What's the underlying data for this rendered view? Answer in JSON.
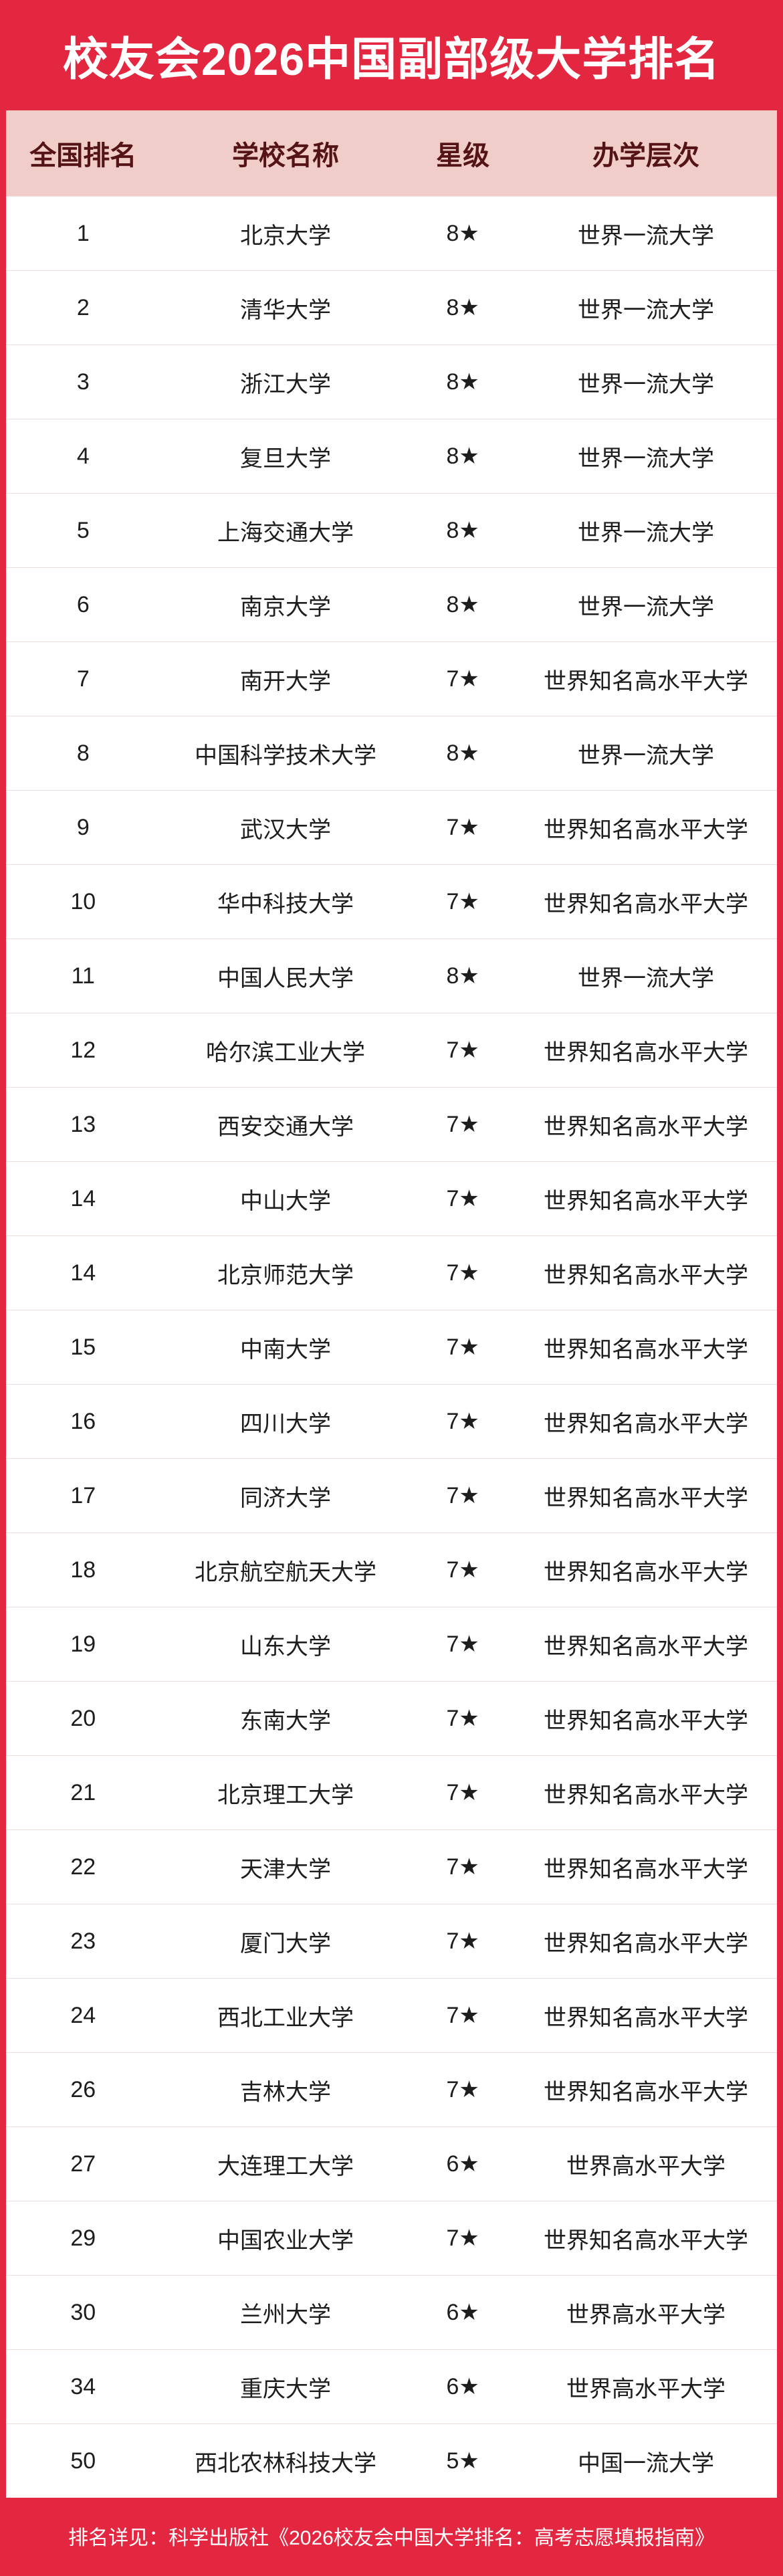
{
  "title": "校友会2026中国副部级大学排名",
  "chart_data": {
    "type": "table",
    "title": "校友会2026中国副部级大学排名",
    "columns": [
      "全国排名",
      "学校名称",
      "星级",
      "办学层次"
    ],
    "rows": [
      [
        "1",
        "北京大学",
        "8★",
        "世界一流大学"
      ],
      [
        "2",
        "清华大学",
        "8★",
        "世界一流大学"
      ],
      [
        "3",
        "浙江大学",
        "8★",
        "世界一流大学"
      ],
      [
        "4",
        "复旦大学",
        "8★",
        "世界一流大学"
      ],
      [
        "5",
        "上海交通大学",
        "8★",
        "世界一流大学"
      ],
      [
        "6",
        "南京大学",
        "8★",
        "世界一流大学"
      ],
      [
        "7",
        "南开大学",
        "7★",
        "世界知名高水平大学"
      ],
      [
        "8",
        "中国科学技术大学",
        "8★",
        "世界一流大学"
      ],
      [
        "9",
        "武汉大学",
        "7★",
        "世界知名高水平大学"
      ],
      [
        "10",
        "华中科技大学",
        "7★",
        "世界知名高水平大学"
      ],
      [
        "11",
        "中国人民大学",
        "8★",
        "世界一流大学"
      ],
      [
        "12",
        "哈尔滨工业大学",
        "7★",
        "世界知名高水平大学"
      ],
      [
        "13",
        "西安交通大学",
        "7★",
        "世界知名高水平大学"
      ],
      [
        "14",
        "中山大学",
        "7★",
        "世界知名高水平大学"
      ],
      [
        "14",
        "北京师范大学",
        "7★",
        "世界知名高水平大学"
      ],
      [
        "15",
        "中南大学",
        "7★",
        "世界知名高水平大学"
      ],
      [
        "16",
        "四川大学",
        "7★",
        "世界知名高水平大学"
      ],
      [
        "17",
        "同济大学",
        "7★",
        "世界知名高水平大学"
      ],
      [
        "18",
        "北京航空航天大学",
        "7★",
        "世界知名高水平大学"
      ],
      [
        "19",
        "山东大学",
        "7★",
        "世界知名高水平大学"
      ],
      [
        "20",
        "东南大学",
        "7★",
        "世界知名高水平大学"
      ],
      [
        "21",
        "北京理工大学",
        "7★",
        "世界知名高水平大学"
      ],
      [
        "22",
        "天津大学",
        "7★",
        "世界知名高水平大学"
      ],
      [
        "23",
        "厦门大学",
        "7★",
        "世界知名高水平大学"
      ],
      [
        "24",
        "西北工业大学",
        "7★",
        "世界知名高水平大学"
      ],
      [
        "26",
        "吉林大学",
        "7★",
        "世界知名高水平大学"
      ],
      [
        "27",
        "大连理工大学",
        "6★",
        "世界高水平大学"
      ],
      [
        "29",
        "中国农业大学",
        "7★",
        "世界知名高水平大学"
      ],
      [
        "30",
        "兰州大学",
        "6★",
        "世界高水平大学"
      ],
      [
        "34",
        "重庆大学",
        "6★",
        "世界高水平大学"
      ],
      [
        "50",
        "西北农林科技大学",
        "5★",
        "中国一流大学"
      ]
    ],
    "footnote": "排名详见：科学出版社《2026校友会中国大学排名：高考志愿填报指南》",
    "layout": {
      "grid": "horizontal-row-dividers",
      "legend": "none"
    }
  },
  "colors": {
    "banner_red": "#e32740",
    "header_bg": "#f0cdc9",
    "header_text": "#541317",
    "row_text": "#1d1d1d",
    "divider": "#f0dedc",
    "title_text": "#ffffff"
  }
}
